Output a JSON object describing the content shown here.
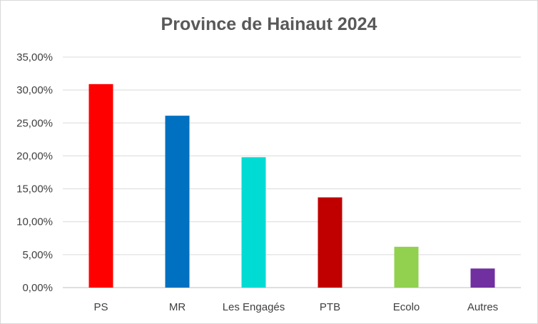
{
  "chart_data": {
    "type": "bar",
    "title": "Province de Hainaut 2024",
    "xlabel": "",
    "ylabel": "",
    "categories": [
      "PS",
      "MR",
      "Les Engagés",
      "PTB",
      "Ecolo",
      "Autres"
    ],
    "values": [
      30.9,
      26.1,
      19.8,
      13.7,
      6.2,
      2.9
    ],
    "colors": [
      "#ff0000",
      "#0070c0",
      "#00dcd4",
      "#c00000",
      "#92d050",
      "#7030a0"
    ],
    "ylim": [
      0,
      35
    ],
    "yticks": [
      0,
      5,
      10,
      15,
      20,
      25,
      30,
      35
    ],
    "ytick_labels": [
      "0,00%",
      "5,00%",
      "10,00%",
      "15,00%",
      "20,00%",
      "25,00%",
      "30,00%",
      "35,00%"
    ],
    "grid": true,
    "legend": "none"
  }
}
